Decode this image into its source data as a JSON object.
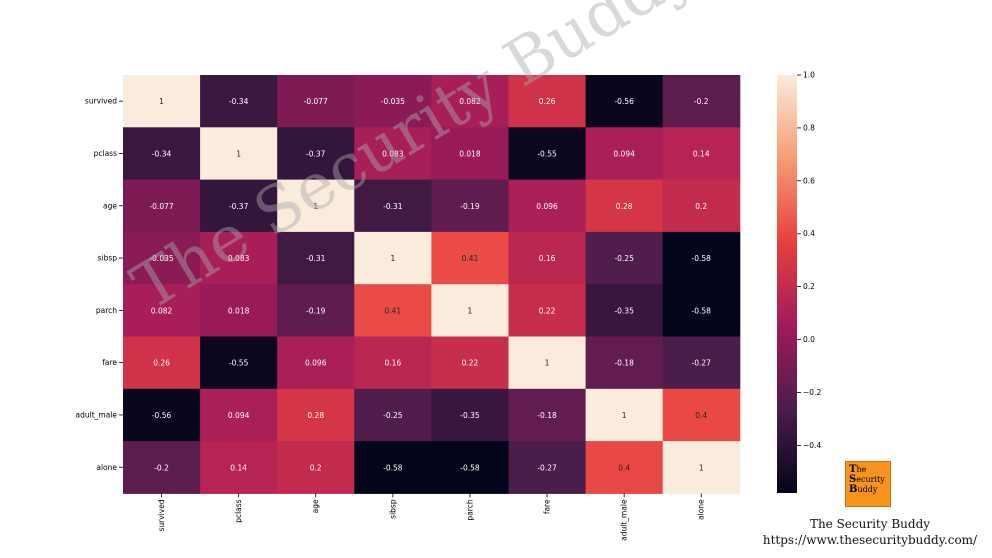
{
  "chart_data": {
    "type": "heatmap",
    "row_labels": [
      "survived",
      "pclass",
      "age",
      "sibsp",
      "parch",
      "fare",
      "adult_male",
      "alone"
    ],
    "col_labels": [
      "survived",
      "pclass",
      "age",
      "sibsp",
      "parch",
      "fare",
      "adult_male",
      "alone"
    ],
    "values": [
      [
        1,
        -0.34,
        -0.077,
        -0.035,
        0.082,
        0.26,
        -0.56,
        -0.2
      ],
      [
        -0.34,
        1,
        -0.37,
        0.083,
        0.018,
        -0.55,
        0.094,
        0.14
      ],
      [
        -0.077,
        -0.37,
        1,
        -0.31,
        -0.19,
        0.096,
        0.28,
        0.2
      ],
      [
        -0.035,
        0.083,
        -0.31,
        1,
        0.41,
        0.16,
        -0.25,
        -0.58
      ],
      [
        0.082,
        0.018,
        -0.19,
        0.41,
        1,
        0.22,
        -0.35,
        -0.58
      ],
      [
        0.26,
        -0.55,
        0.096,
        0.16,
        0.22,
        1,
        -0.18,
        -0.27
      ],
      [
        -0.56,
        0.094,
        0.28,
        -0.25,
        -0.35,
        -0.18,
        1,
        0.4
      ],
      [
        -0.2,
        0.14,
        0.2,
        -0.58,
        -0.58,
        -0.27,
        0.4,
        1
      ]
    ],
    "annotations": [
      [
        "1",
        "-0.34",
        "-0.077",
        "-0.035",
        "0.082",
        "0.26",
        "-0.56",
        "-0.2"
      ],
      [
        "-0.34",
        "1",
        "-0.37",
        "0.083",
        "0.018",
        "-0.55",
        "0.094",
        "0.14"
      ],
      [
        "-0.077",
        "-0.37",
        "1",
        "-0.31",
        "-0.19",
        "0.096",
        "0.28",
        "0.2"
      ],
      [
        "-0.035",
        "0.083",
        "-0.31",
        "1",
        "0.41",
        "0.16",
        "-0.25",
        "-0.58"
      ],
      [
        "0.082",
        "0.018",
        "-0.19",
        "0.41",
        "1",
        "0.22",
        "-0.35",
        "-0.58"
      ],
      [
        "0.26",
        "-0.55",
        "0.096",
        "0.16",
        "0.22",
        "1",
        "-0.18",
        "-0.27"
      ],
      [
        "-0.56",
        "0.094",
        "0.28",
        "-0.25",
        "-0.35",
        "-0.18",
        "1",
        "0.4"
      ],
      [
        "-0.2",
        "0.14",
        "0.2",
        "-0.58",
        "-0.58",
        "-0.27",
        "0.4",
        "1"
      ]
    ],
    "colorbar": {
      "range": [
        -0.58,
        1.0
      ],
      "ticks": [
        1.0,
        0.8,
        0.6,
        0.4,
        0.2,
        0.0,
        -0.2,
        -0.4
      ],
      "tick_labels": [
        "1.0",
        "0.8",
        "0.6",
        "0.4",
        "0.2",
        "0.0",
        "−0.2",
        "−0.4"
      ]
    },
    "colormap": "rocket",
    "colormap_stops": [
      "#03051a",
      "#4c1d4b",
      "#a11a5b",
      "#e83f3f",
      "#f69c73",
      "#faebdd"
    ]
  },
  "watermark_text": "The Security Buddy",
  "brand": {
    "logo_letters": [
      "T",
      "S",
      "B"
    ],
    "logo_words": [
      "he",
      "ecurity",
      "uddy"
    ],
    "name": "The Security Buddy",
    "url": "https://www.thesecuritybuddy.com/"
  }
}
